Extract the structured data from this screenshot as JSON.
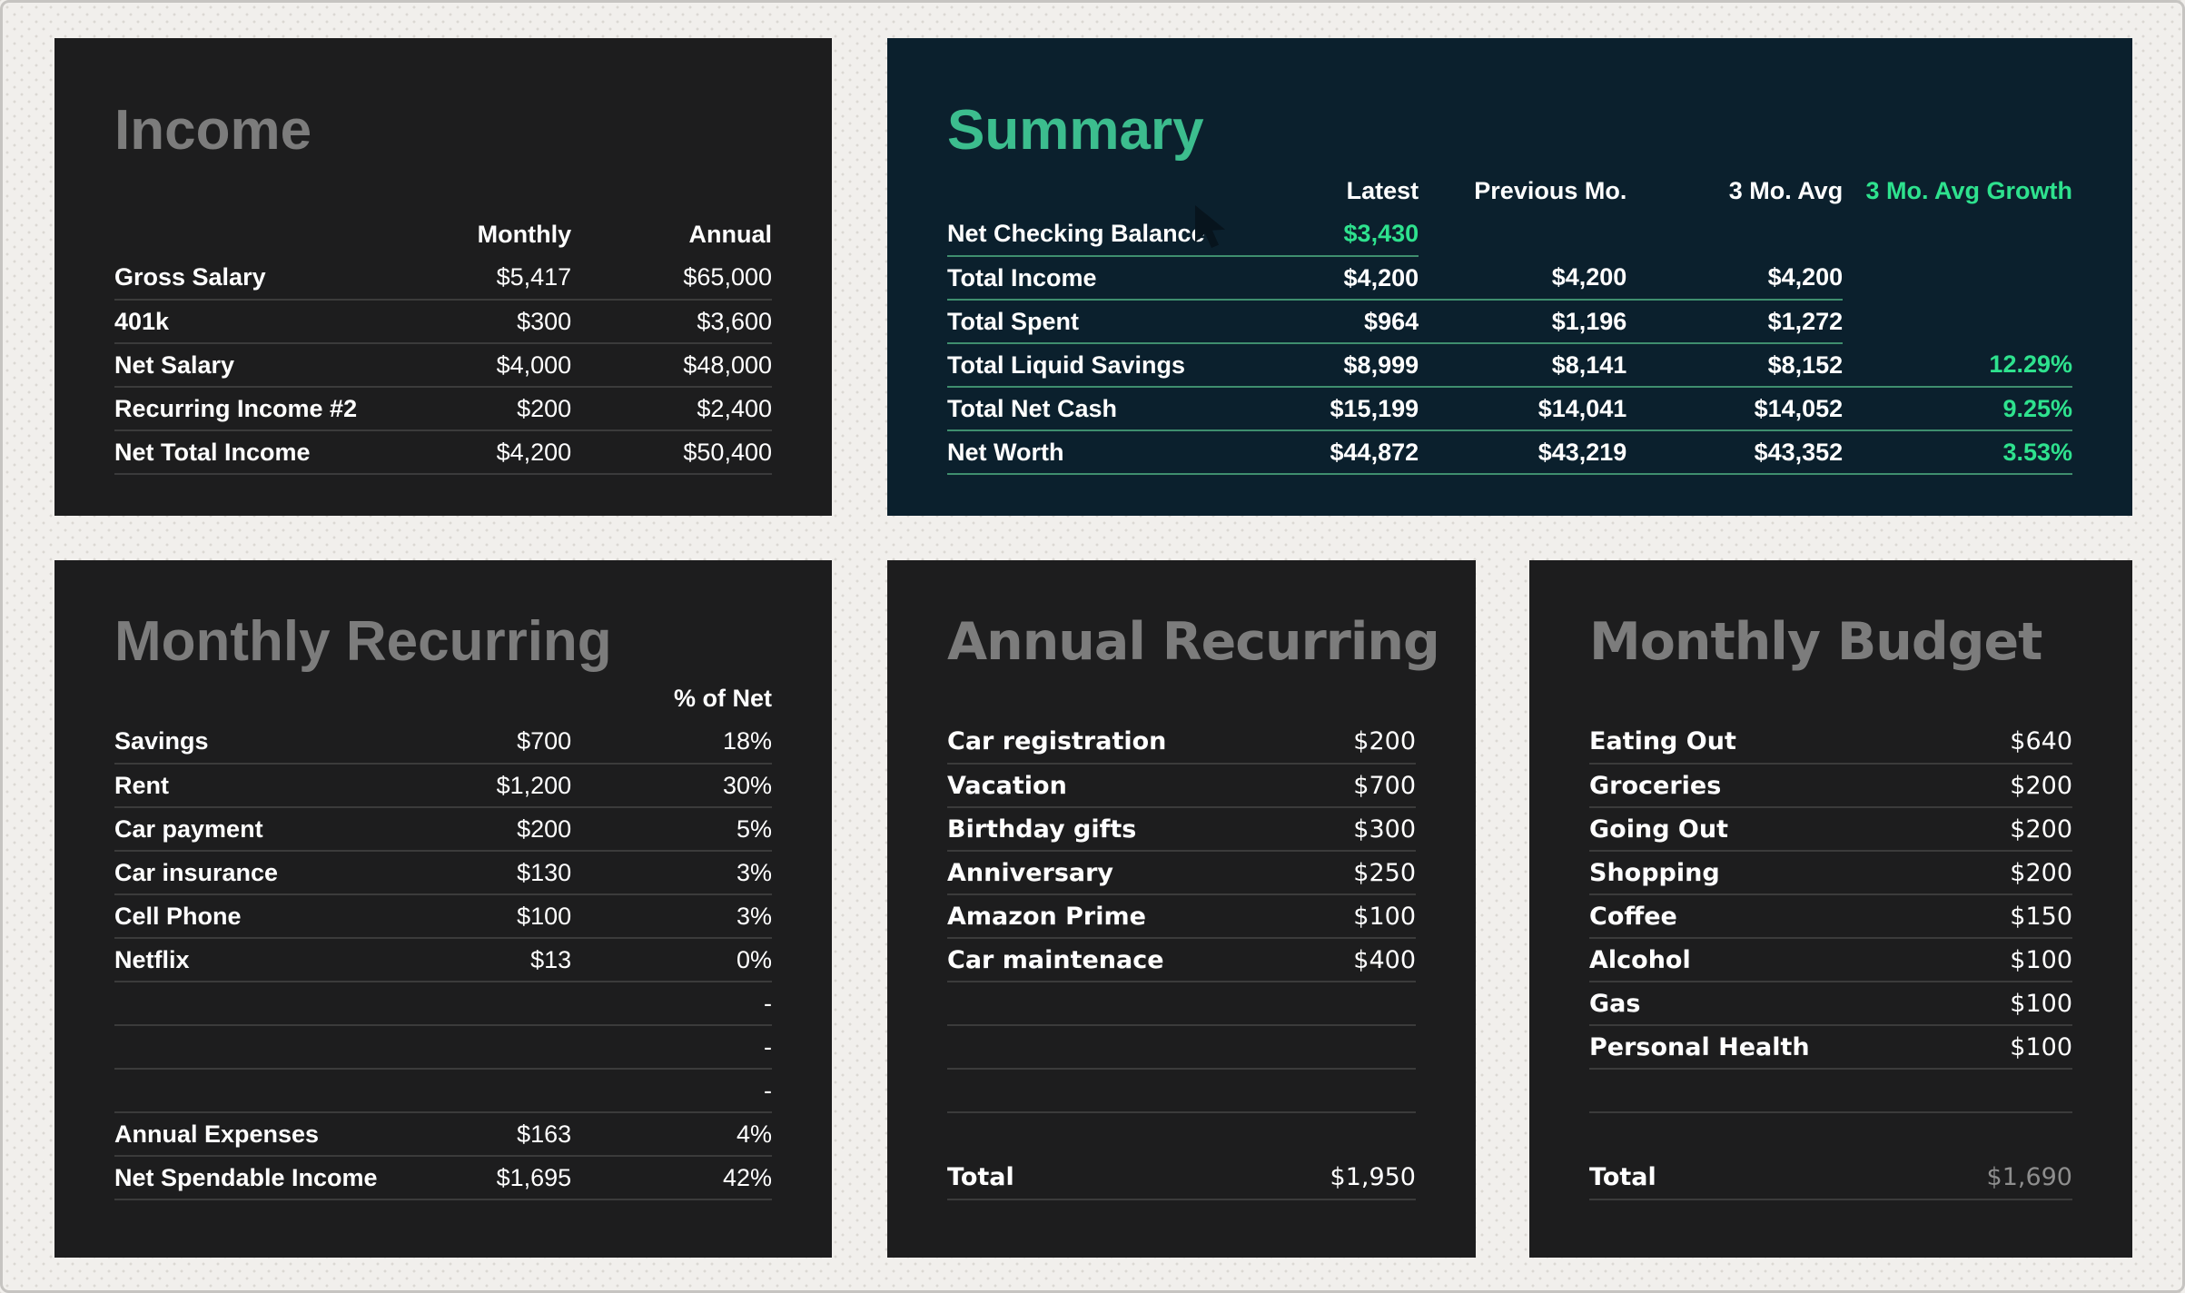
{
  "colors": {
    "page_background": "#f1efec",
    "card_background": "#1d1d1e",
    "summary_background": "#0b202d",
    "accent_green_title": "#3cbd8e",
    "accent_green_value": "#2ee28e",
    "separator_gray": "#3b3b3b",
    "separator_green": "#3f8e6e",
    "title_gray": "#7c7c7c",
    "muted_value_gray": "#8e8e8e"
  },
  "cards": {
    "income": {
      "title": "Income",
      "header": {
        "label": "",
        "monthly": "Monthly",
        "annual": "Annual"
      },
      "rows": [
        {
          "label": "Gross Salary",
          "monthly": "$5,417",
          "annual": "$65,000"
        },
        {
          "label": "401k",
          "monthly": "$300",
          "annual": "$3,600"
        },
        {
          "label": "Net Salary",
          "monthly": "$4,000",
          "annual": "$48,000"
        },
        {
          "label": "Recurring Income #2",
          "monthly": "$200",
          "annual": "$2,400"
        },
        {
          "label": "Net Total Income",
          "monthly": "$4,200",
          "annual": "$50,400"
        }
      ]
    },
    "summary": {
      "title": "Summary",
      "header": {
        "label": "",
        "latest": "Latest",
        "previous": "Previous Mo.",
        "avg": "3 Mo. Avg",
        "growth": "3 Mo. Avg Growth"
      },
      "rows": [
        {
          "label": "Net Checking Balance",
          "latest": "$3,430",
          "previous": "",
          "avg": "",
          "growth": "",
          "latest_class": "green",
          "sep": "2"
        },
        {
          "label": "Total Income",
          "latest": "$4,200",
          "previous": "$4,200",
          "avg": "$4,200",
          "growth": "",
          "sep": "4"
        },
        {
          "label": "Total Spent",
          "latest": "$964",
          "previous": "$1,196",
          "avg": "$1,272",
          "growth": "",
          "sep": "4"
        },
        {
          "label": "Total Liquid Savings",
          "latest": "$8,999",
          "previous": "$8,141",
          "avg": "$8,152",
          "growth": "12.29%",
          "sep": "5"
        },
        {
          "label": "Total Net Cash",
          "latest": "$15,199",
          "previous": "$14,041",
          "avg": "$14,052",
          "growth": "9.25%",
          "sep": "5"
        },
        {
          "label": "Net Worth",
          "latest": "$44,872",
          "previous": "$43,219",
          "avg": "$43,352",
          "growth": "3.53%",
          "sep": "5"
        }
      ]
    },
    "monthly_recurring": {
      "title": "Monthly Recurring",
      "header": {
        "label": "",
        "amount": "",
        "pct": "% of Net"
      },
      "rows": [
        {
          "label": "Savings",
          "amount": "$700",
          "pct": "18%"
        },
        {
          "label": "Rent",
          "amount": "$1,200",
          "pct": "30%"
        },
        {
          "label": "Car payment",
          "amount": "$200",
          "pct": "5%"
        },
        {
          "label": "Car insurance",
          "amount": "$130",
          "pct": "3%"
        },
        {
          "label": "Cell Phone",
          "amount": "$100",
          "pct": "3%"
        },
        {
          "label": "Netflix",
          "amount": "$13",
          "pct": "0%"
        },
        {
          "label": "",
          "amount": "",
          "pct": "-"
        },
        {
          "label": "",
          "amount": "",
          "pct": "-"
        },
        {
          "label": "",
          "amount": "",
          "pct": "-"
        },
        {
          "label": "Annual Expenses",
          "amount": "$163",
          "pct": "4%"
        },
        {
          "label": "Net Spendable Income",
          "amount": "$1,695",
          "pct": "42%"
        }
      ]
    },
    "annual_recurring": {
      "title": "Annual Recurring",
      "rows": [
        {
          "label": "Car registration",
          "amount": "$200"
        },
        {
          "label": "Vacation",
          "amount": "$700"
        },
        {
          "label": "Birthday gifts",
          "amount": "$300"
        },
        {
          "label": "Anniversary",
          "amount": "$250"
        },
        {
          "label": "Amazon Prime",
          "amount": "$100"
        },
        {
          "label": "Car maintenace",
          "amount": "$400"
        },
        {
          "label": "",
          "amount": ""
        },
        {
          "label": "",
          "amount": ""
        },
        {
          "label": "",
          "amount": ""
        },
        {
          "label": "",
          "amount": "",
          "sep": "0"
        },
        {
          "label": "Total",
          "amount": "$1,950"
        }
      ]
    },
    "monthly_budget": {
      "title": "Monthly Budget",
      "rows": [
        {
          "label": "Eating Out",
          "amount": "$640"
        },
        {
          "label": "Groceries",
          "amount": "$200"
        },
        {
          "label": "Going Out",
          "amount": "$200"
        },
        {
          "label": "Shopping",
          "amount": "$200"
        },
        {
          "label": "Coffee",
          "amount": "$150"
        },
        {
          "label": "Alcohol",
          "amount": "$100"
        },
        {
          "label": "Gas",
          "amount": "$100"
        },
        {
          "label": "Personal Health",
          "amount": "$100"
        },
        {
          "label": "",
          "amount": ""
        },
        {
          "label": "",
          "amount": "",
          "sep": "0"
        },
        {
          "label": "Total",
          "amount": "$1,690",
          "amount_class": "muted"
        }
      ]
    }
  }
}
